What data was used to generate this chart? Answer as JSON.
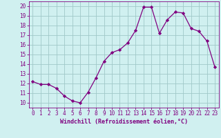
{
  "x": [
    0,
    1,
    2,
    3,
    4,
    5,
    6,
    7,
    8,
    9,
    10,
    11,
    12,
    13,
    14,
    15,
    16,
    17,
    18,
    19,
    20,
    21,
    22,
    23
  ],
  "y": [
    12.2,
    11.9,
    11.9,
    11.5,
    10.7,
    10.2,
    10.0,
    11.1,
    12.6,
    14.3,
    15.2,
    15.5,
    16.2,
    17.5,
    19.9,
    19.9,
    17.2,
    18.6,
    19.4,
    19.3,
    17.7,
    17.4,
    16.4,
    13.7
  ],
  "line_color": "#800080",
  "marker": "D",
  "marker_size": 2.2,
  "bg_color": "#d0f0f0",
  "grid_color": "#a0c8c8",
  "xlabel": "Windchill (Refroidissement éolien,°C)",
  "xlim": [
    -0.5,
    23.5
  ],
  "ylim": [
    9.5,
    20.5
  ],
  "yticks": [
    10,
    11,
    12,
    13,
    14,
    15,
    16,
    17,
    18,
    19,
    20
  ],
  "xticks": [
    0,
    1,
    2,
    3,
    4,
    5,
    6,
    7,
    8,
    9,
    10,
    11,
    12,
    13,
    14,
    15,
    16,
    17,
    18,
    19,
    20,
    21,
    22,
    23
  ],
  "tick_color": "#800080",
  "xlabel_fontsize": 6.0,
  "tick_fontsize": 5.5
}
